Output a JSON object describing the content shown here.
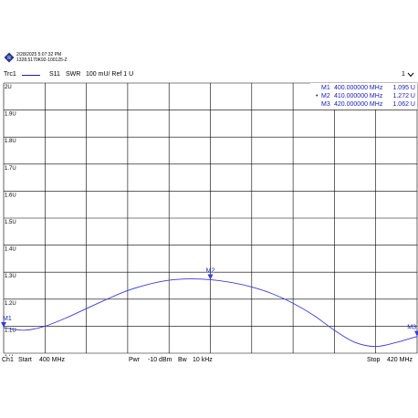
{
  "header": {
    "timestamp": "2/28/2025 5:07:32 PM",
    "instrument_id": "1328.5170K92-100125-Z",
    "logo": "rohde-schwarz-logo"
  },
  "trace_bar": {
    "trace": "Trc1",
    "param": "S11",
    "format": "SWR",
    "scale": "100 mU/ Ref 1 U",
    "channel_indicator": "1",
    "channel_indicator_icon": "chevron-down-icon"
  },
  "chart_data": {
    "type": "line",
    "xlabel": "",
    "ylabel": "",
    "xlim": [
      400,
      420
    ],
    "ylim": [
      1.0,
      2.0
    ],
    "yticks": [
      "2U",
      "1.9U",
      "1.8U",
      "1.7U",
      "1.6U",
      "1.5U",
      "1.4U",
      "1.3U",
      "1.2U",
      "1.1U",
      "1 U"
    ],
    "grid": true,
    "color": "#3a3ad6",
    "series": [
      {
        "x": [
          400,
          401,
          402,
          403,
          404,
          405,
          406,
          407,
          408,
          409,
          410,
          411,
          412,
          413,
          414,
          415,
          416,
          417,
          418,
          419,
          420
        ],
        "values": [
          1.095,
          1.085,
          1.1,
          1.13,
          1.165,
          1.2,
          1.232,
          1.255,
          1.27,
          1.275,
          1.272,
          1.262,
          1.245,
          1.22,
          1.185,
          1.14,
          1.085,
          1.04,
          1.025,
          1.04,
          1.062
        ]
      }
    ],
    "markers": [
      {
        "label": "M1",
        "freq": "400.000000 MHz",
        "value": "1.095 U",
        "x": 400,
        "y": 1.095
      },
      {
        "label": "M2",
        "freq": "410.000000 MHz",
        "value": "1.272 U",
        "x": 410,
        "y": 1.272,
        "active": true
      },
      {
        "label": "M3",
        "freq": "420.000000 MHz",
        "value": "1.062 U",
        "x": 420,
        "y": 1.062
      }
    ]
  },
  "footer": {
    "channel": "Ch1",
    "start_label": "Start",
    "start_value": "400 MHz",
    "power_label": "Pwr",
    "power_value": "-10 dBm",
    "bw_label": "Bw",
    "bw_value": "10 kHz",
    "stop_label": "Stop",
    "stop_value": "420 MHz"
  },
  "colors": {
    "trace": "#3a3ad6",
    "marker_text": "#1a1ab5",
    "grid": "#000000"
  }
}
